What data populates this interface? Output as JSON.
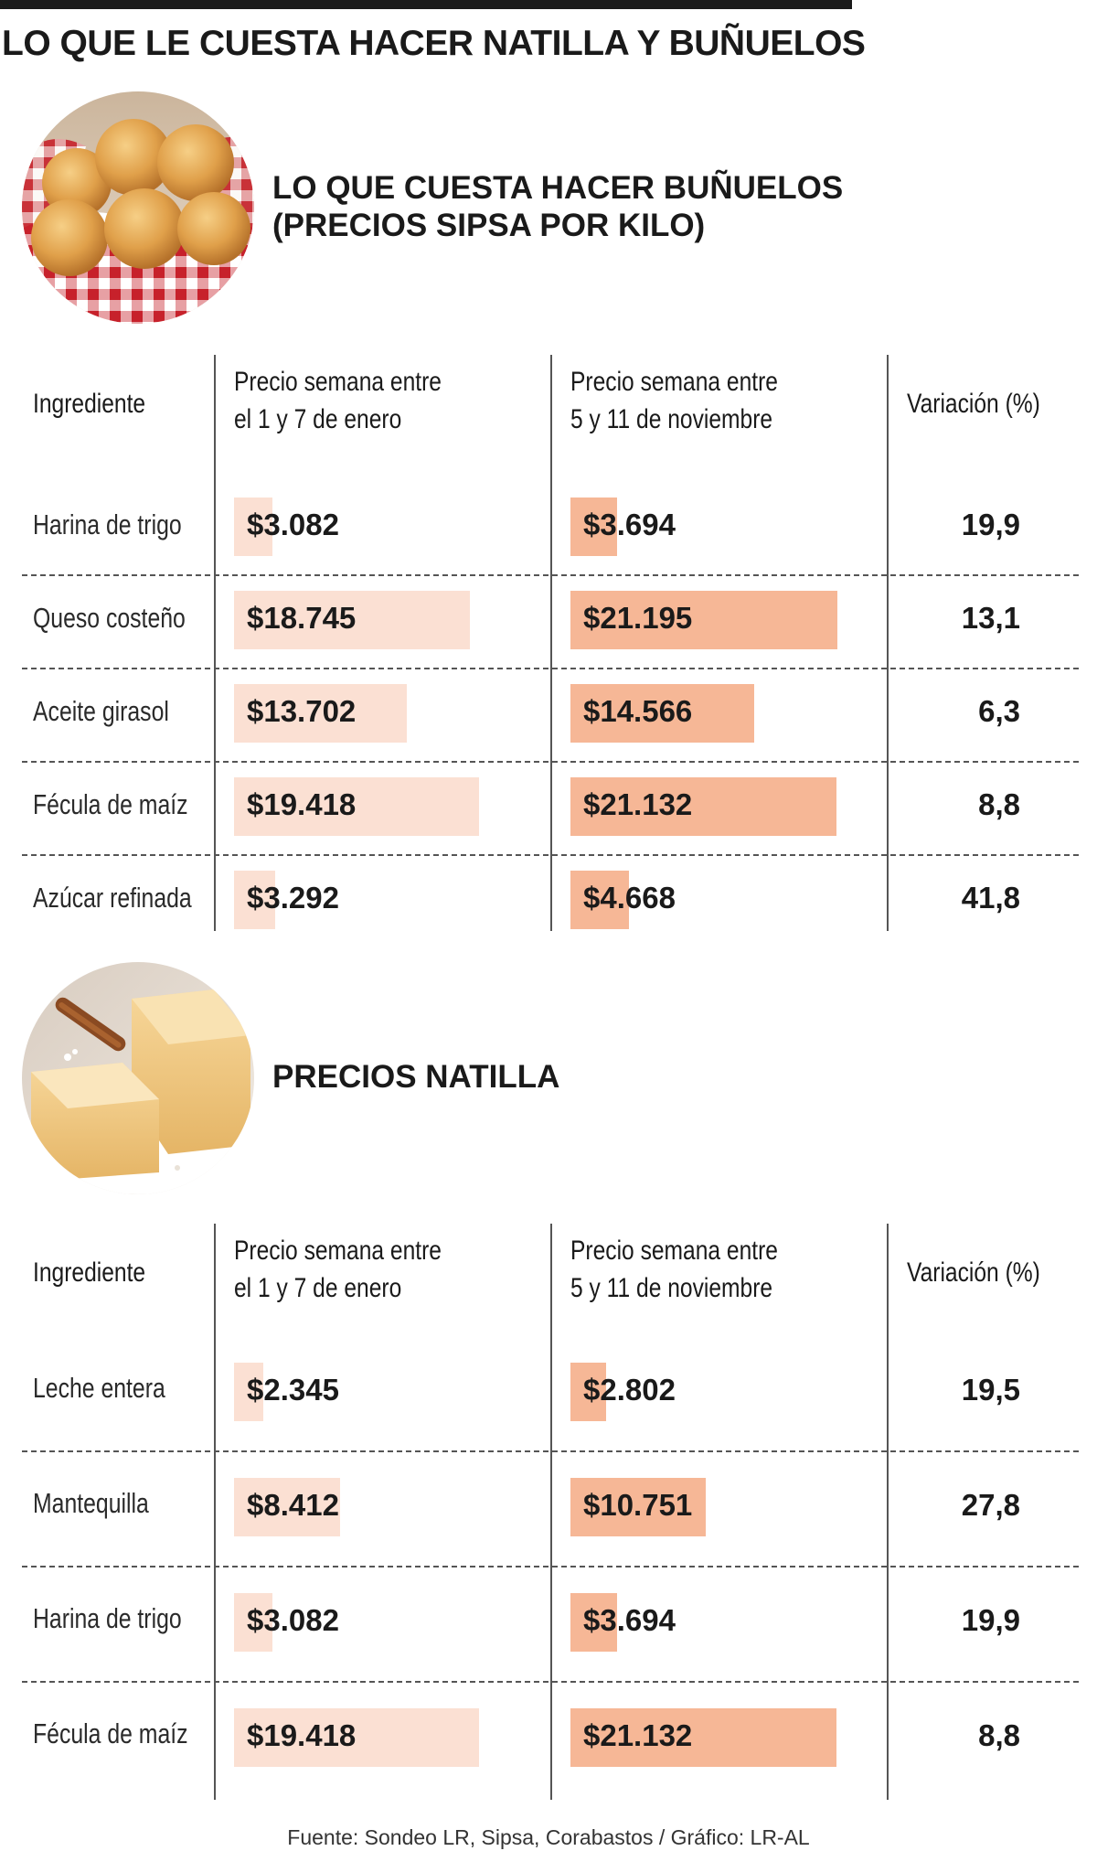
{
  "title": "LO QUE LE CUESTA HACER NATILLA Y BUÑUELOS",
  "colors": {
    "bar_january": "#fbe0d3",
    "bar_november": "#f6b796",
    "text": "#1a1a1a"
  },
  "sections": [
    {
      "title_line1": "LO QUE CUESTA HACER BUÑUELOS",
      "title_line2": "(PRECIOS SIPSA POR KILO)",
      "image": "bunuelos-basket-photo",
      "headers": {
        "ingredient": "Ingrediente",
        "jan_line1": "Precio semana entre",
        "jan_line2": "el 1 y 7 de enero",
        "nov_line1": "Precio semana entre",
        "nov_line2": "5 y 11 de noviembre",
        "variation": "Variación (%)"
      },
      "rows": [
        {
          "ingredient": "Harina de trigo",
          "jan_label": "$3.082",
          "nov_label": "$3.694",
          "variation": "19,9"
        },
        {
          "ingredient": "Queso costeño",
          "jan_label": "$18.745",
          "nov_label": "$21.195",
          "variation": "13,1"
        },
        {
          "ingredient": "Aceite girasol",
          "jan_label": "$13.702",
          "nov_label": "$14.566",
          "variation": "6,3"
        },
        {
          "ingredient": "Fécula de maíz",
          "jan_label": "$19.418",
          "nov_label": "$21.132",
          "variation": "8,8"
        },
        {
          "ingredient": "Azúcar refinada",
          "jan_label": "$3.292",
          "nov_label": "$4.668",
          "variation": "41,8"
        }
      ]
    },
    {
      "title_line1": "PRECIOS NATILLA",
      "title_line2": "",
      "image": "natilla-cinnamon-photo",
      "headers": {
        "ingredient": "Ingrediente",
        "jan_line1": "Precio semana entre",
        "jan_line2": "el 1 y 7 de enero",
        "nov_line1": "Precio semana entre",
        "nov_line2": "5 y 11 de noviembre",
        "variation": "Variación (%)"
      },
      "rows": [
        {
          "ingredient": "Leche entera",
          "jan_label": "$2.345",
          "nov_label": "$2.802",
          "variation": "19,5"
        },
        {
          "ingredient": "Mantequilla",
          "jan_label": "$8.412",
          "nov_label": "$10.751",
          "variation": "27,8"
        },
        {
          "ingredient": "Harina de trigo",
          "jan_label": "$3.082",
          "nov_label": "$3.694",
          "variation": "19,9"
        },
        {
          "ingredient": "Fécula de maíz",
          "jan_label": "$19.418",
          "nov_label": "$21.132",
          "variation": "8,8"
        }
      ]
    }
  ],
  "source": "Fuente: Sondeo LR, Sipsa, Corabastos / Gráfico: LR-AL",
  "chart_data": [
    {
      "type": "bar",
      "title": "LO QUE CUESTA HACER BUÑUELOS (PRECIOS SIPSA POR KILO)",
      "categories": [
        "Harina de trigo",
        "Queso costeño",
        "Aceite girasol",
        "Fécula de maíz",
        "Azúcar refinada"
      ],
      "series": [
        {
          "name": "Precio semana entre el 1 y 7 de enero",
          "values": [
            3082,
            18745,
            13702,
            19418,
            3292
          ]
        },
        {
          "name": "Precio semana entre 5 y 11 de noviembre",
          "values": [
            3694,
            21195,
            14566,
            21132,
            4668
          ]
        }
      ],
      "variation_pct": [
        19.9,
        13.1,
        6.3,
        8.8,
        41.8
      ],
      "xmax": 21195,
      "grid": false,
      "orientation": "horizontal"
    },
    {
      "type": "bar",
      "title": "PRECIOS NATILLA",
      "categories": [
        "Leche entera",
        "Mantequilla",
        "Harina de trigo",
        "Fécula de maíz"
      ],
      "series": [
        {
          "name": "Precio semana entre el 1 y 7 de enero",
          "values": [
            2345,
            8412,
            3082,
            19418
          ]
        },
        {
          "name": "Precio semana entre 5 y 11 de noviembre",
          "values": [
            2802,
            10751,
            3694,
            21132
          ]
        }
      ],
      "variation_pct": [
        19.5,
        27.8,
        19.9,
        8.8
      ],
      "xmax": 21195,
      "grid": false,
      "orientation": "horizontal"
    }
  ]
}
